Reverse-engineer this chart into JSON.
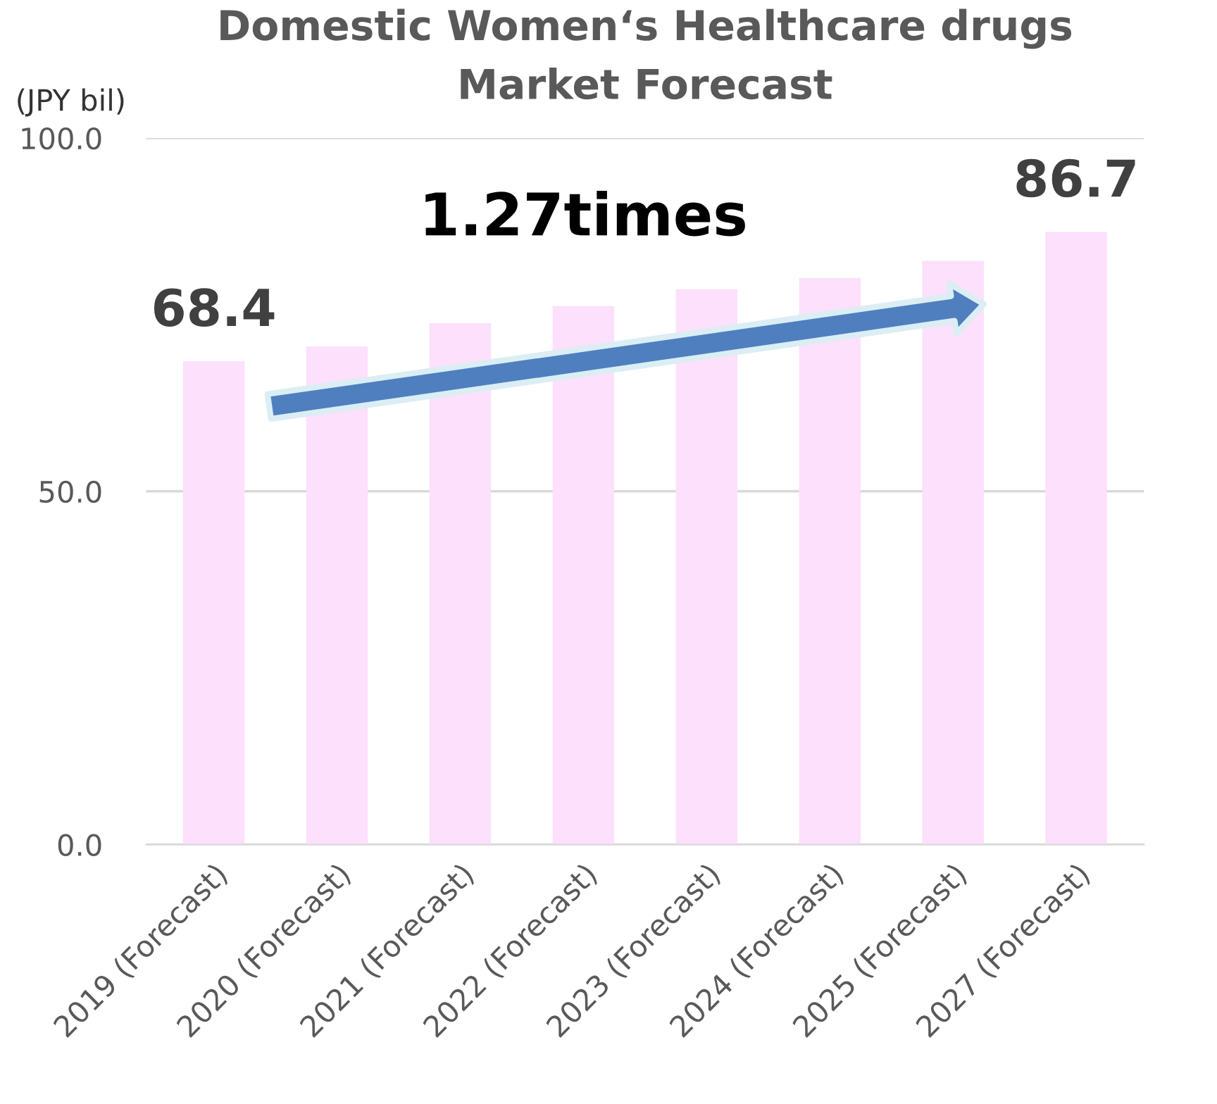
{
  "chart_data": {
    "type": "bar",
    "title": "Domestic Women‘s Healthcare drugs\nMarket Forecast",
    "ylabel": "(JPY bil)",
    "categories": [
      "2019 (Forecast)",
      "2020 (Forecast)",
      "2021 (Forecast)",
      "2022 (Forecast)",
      "2023 (Forecast)",
      "2024 (Forecast)",
      "2025 (Forecast)",
      "2027 (Forecast)"
    ],
    "values": [
      68.4,
      70.5,
      73.8,
      76.2,
      78.6,
      80.2,
      82.6,
      86.7
    ],
    "value_labels": [
      "68.4",
      null,
      null,
      null,
      null,
      null,
      null,
      "86.7"
    ],
    "color": "#fce0fc",
    "ylim": [
      0,
      100
    ],
    "yticks": [
      {
        "value": 0,
        "label": "0.0"
      },
      {
        "value": 50,
        "label": "50.0"
      },
      {
        "value": 100,
        "label": "100.0"
      }
    ],
    "grid": "y",
    "legend": false,
    "annotations": [
      "1.27times"
    ]
  }
}
